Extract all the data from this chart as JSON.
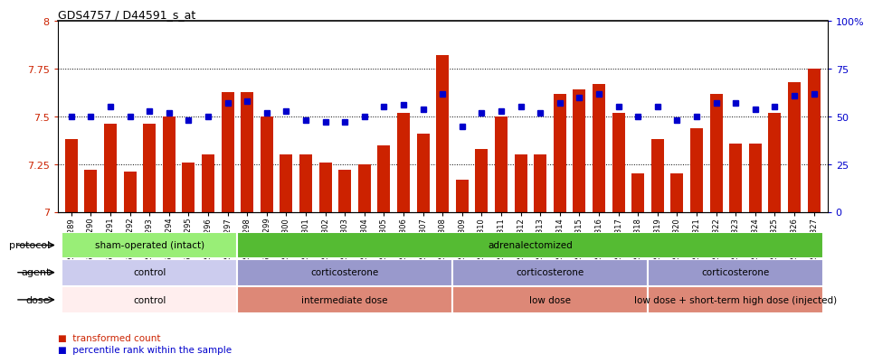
{
  "title": "GDS4757 / D44591_s_at",
  "samples": [
    "GSM923289",
    "GSM923290",
    "GSM923291",
    "GSM923292",
    "GSM923293",
    "GSM923294",
    "GSM923295",
    "GSM923296",
    "GSM923297",
    "GSM923298",
    "GSM923299",
    "GSM923300",
    "GSM923301",
    "GSM923302",
    "GSM923303",
    "GSM923304",
    "GSM923305",
    "GSM923306",
    "GSM923307",
    "GSM923308",
    "GSM923309",
    "GSM923310",
    "GSM923311",
    "GSM923312",
    "GSM923313",
    "GSM923314",
    "GSM923315",
    "GSM923316",
    "GSM923317",
    "GSM923318",
    "GSM923319",
    "GSM923320",
    "GSM923321",
    "GSM923322",
    "GSM923323",
    "GSM923324",
    "GSM923325",
    "GSM923326",
    "GSM923327"
  ],
  "bar_values": [
    7.38,
    7.22,
    7.46,
    7.21,
    7.46,
    7.5,
    7.26,
    7.3,
    7.63,
    7.63,
    7.5,
    7.3,
    7.3,
    7.26,
    7.22,
    7.25,
    7.35,
    7.52,
    7.41,
    7.82,
    7.17,
    7.33,
    7.5,
    7.3,
    7.3,
    7.62,
    7.64,
    7.67,
    7.52,
    7.2,
    7.38,
    7.2,
    7.44,
    7.62,
    7.36,
    7.36,
    7.52,
    7.68,
    7.75
  ],
  "percentile_values": [
    50,
    50,
    55,
    50,
    53,
    52,
    48,
    50,
    57,
    58,
    52,
    53,
    48,
    47,
    47,
    50,
    55,
    56,
    54,
    62,
    45,
    52,
    53,
    55,
    52,
    57,
    60,
    62,
    55,
    50,
    55,
    48,
    50,
    57,
    57,
    54,
    55,
    61,
    62
  ],
  "ylim_left": [
    7.0,
    8.0
  ],
  "ylim_right": [
    0,
    100
  ],
  "yticks_left": [
    7.0,
    7.25,
    7.5,
    7.75,
    8.0
  ],
  "yticks_right": [
    0,
    25,
    50,
    75,
    100
  ],
  "bar_color": "#cc2200",
  "marker_color": "#0000cc",
  "dotted_line_y": [
    7.25,
    7.5,
    7.75
  ],
  "protocol_groups": [
    {
      "label": "sham-operated (intact)",
      "start": 0,
      "end": 9,
      "color": "#99ee77"
    },
    {
      "label": "adrenalectomized",
      "start": 9,
      "end": 39,
      "color": "#55bb33"
    }
  ],
  "agent_groups": [
    {
      "label": "control",
      "start": 0,
      "end": 9,
      "color": "#ccccee"
    },
    {
      "label": "corticosterone",
      "start": 9,
      "end": 20,
      "color": "#9999cc"
    },
    {
      "label": "corticosterone",
      "start": 20,
      "end": 30,
      "color": "#9999cc"
    },
    {
      "label": "corticosterone",
      "start": 30,
      "end": 39,
      "color": "#9999cc"
    }
  ],
  "dose_groups": [
    {
      "label": "control",
      "start": 0,
      "end": 9,
      "color": "#ffeeee"
    },
    {
      "label": "intermediate dose",
      "start": 9,
      "end": 20,
      "color": "#dd8877"
    },
    {
      "label": "low dose",
      "start": 20,
      "end": 30,
      "color": "#dd8877"
    },
    {
      "label": "low dose + short-term high dose (injected)",
      "start": 30,
      "end": 39,
      "color": "#dd8877"
    }
  ],
  "legend_bar_label": "transformed count",
  "legend_marker_label": "percentile rank within the sample",
  "row_labels": [
    "protocol",
    "agent",
    "dose"
  ],
  "background_color": "#ffffff"
}
